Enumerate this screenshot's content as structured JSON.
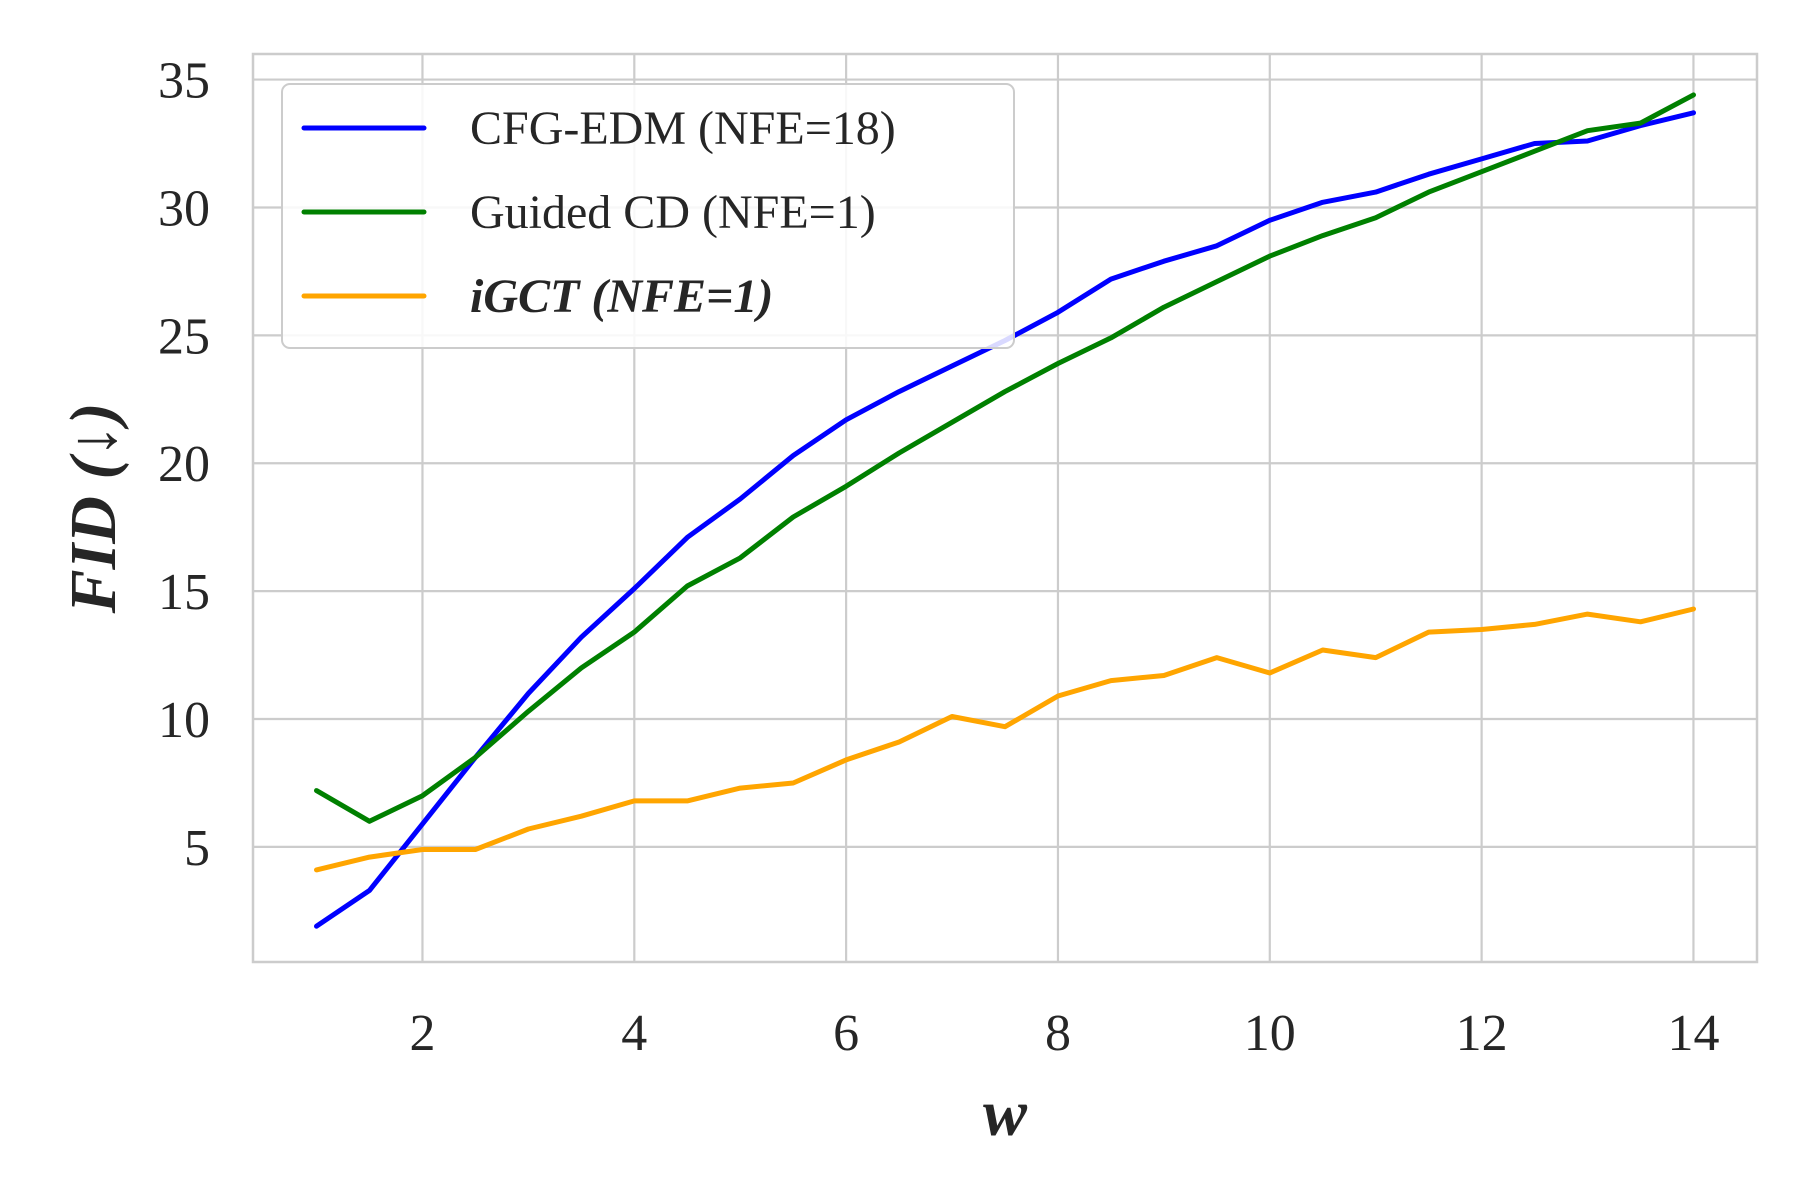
{
  "chart_data": {
    "type": "line",
    "xlabel": "w",
    "ylabel": "FID (↓)",
    "xlim": [
      0.4,
      14.6
    ],
    "ylim": [
      0.5,
      36
    ],
    "xticks": [
      2,
      4,
      6,
      8,
      10,
      12,
      14
    ],
    "yticks": [
      5,
      10,
      15,
      20,
      25,
      30,
      35
    ],
    "grid": true,
    "legend_position": "upper-left",
    "x": [
      1,
      1.5,
      2,
      2.5,
      3,
      3.5,
      4,
      4.5,
      5,
      5.5,
      6,
      6.5,
      7,
      7.5,
      8,
      8.5,
      9,
      9.5,
      10,
      10.5,
      11,
      11.5,
      12,
      12.5,
      13,
      13.5,
      14
    ],
    "series": [
      {
        "name": "CFG-EDM (NFE=18)",
        "color": "#0000ff",
        "emphasis": false,
        "values": [
          1.9,
          3.3,
          5.9,
          8.5,
          11.0,
          13.2,
          15.1,
          17.1,
          18.6,
          20.3,
          21.7,
          22.8,
          23.8,
          24.8,
          25.9,
          27.2,
          27.9,
          28.5,
          29.5,
          30.2,
          30.6,
          31.3,
          31.9,
          32.5,
          32.6,
          33.2,
          33.7
        ]
      },
      {
        "name": "Guided CD (NFE=1)",
        "color": "#008000",
        "emphasis": false,
        "values": [
          7.2,
          6.0,
          7.0,
          8.5,
          10.3,
          12.0,
          13.4,
          15.2,
          16.3,
          17.9,
          19.1,
          20.4,
          21.6,
          22.8,
          23.9,
          24.9,
          26.1,
          27.1,
          28.1,
          28.9,
          29.6,
          30.6,
          31.4,
          32.2,
          33.0,
          33.3,
          34.4
        ]
      },
      {
        "name": "iGCT (NFE=1)",
        "color": "#ffa500",
        "emphasis": true,
        "values": [
          4.1,
          4.6,
          4.9,
          4.9,
          5.7,
          6.2,
          6.8,
          6.8,
          7.3,
          7.5,
          8.4,
          9.1,
          10.1,
          9.7,
          10.9,
          11.5,
          11.7,
          12.4,
          11.8,
          12.7,
          12.4,
          13.4,
          13.5,
          13.7,
          14.1,
          13.8,
          14.3
        ]
      }
    ]
  }
}
